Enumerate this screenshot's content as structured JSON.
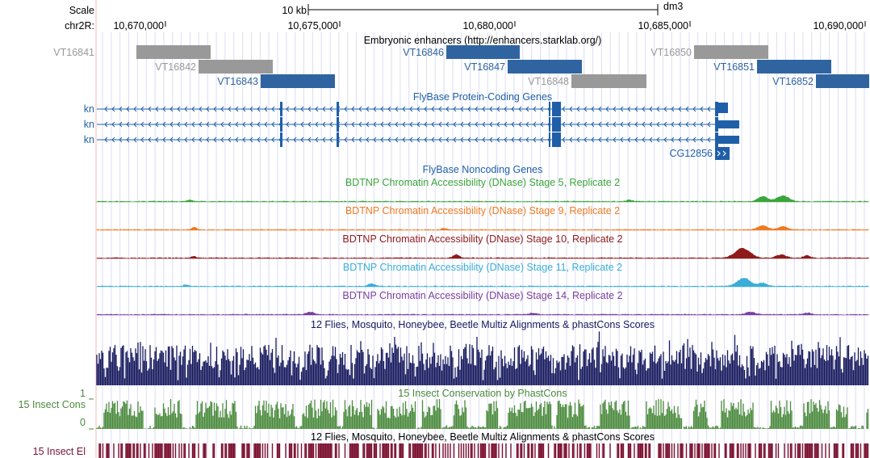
{
  "scale": {
    "label": "Scale",
    "bar_label": "10 kb",
    "assembly": "dm3",
    "chrom_label": "chr2R:",
    "ticks": [
      "10,670,000",
      "10,675,000",
      "10,680,000",
      "10,685,000",
      "10,690,000"
    ]
  },
  "tracks": {
    "enhancers": {
      "title": "Embryonic enhancers (http://enhancers.starklab.org/)",
      "items": [
        {
          "name": "VT16841",
          "color": "#999999"
        },
        {
          "name": "VT16842",
          "color": "#999999"
        },
        {
          "name": "VT16843",
          "color": "#2f64a0"
        },
        {
          "name": "VT16846",
          "color": "#2f64a0"
        },
        {
          "name": "VT16847",
          "color": "#2f64a0"
        },
        {
          "name": "VT16848",
          "color": "#999999"
        },
        {
          "name": "VT16850",
          "color": "#999999"
        },
        {
          "name": "VT16851",
          "color": "#2f64a0"
        },
        {
          "name": "VT16852",
          "color": "#2f64a0"
        }
      ]
    },
    "genes": {
      "title": "FlyBase Protein-Coding Genes",
      "color": "#1f5fa8",
      "transcripts": [
        {
          "label": "kn"
        },
        {
          "label": "kn"
        },
        {
          "label": "kn"
        }
      ],
      "extra_gene": {
        "label": "CG12856"
      }
    },
    "noncoding": {
      "title": "FlyBase Noncoding Genes"
    },
    "dnase": [
      {
        "title": "BDTNP Chromatin Accessibility (DNase) Stage 5, Replicate 2",
        "color": "#3aa53a"
      },
      {
        "title": "BDTNP Chromatin Accessibility (DNase) Stage 9, Replicate 2",
        "color": "#ef7a22"
      },
      {
        "title": "BDTNP Chromatin Accessibility (DNase) Stage 10, Replicate 2",
        "color": "#8e1a1a"
      },
      {
        "title": "BDTNP Chromatin Accessibility (DNase) Stage 11, Replicate 2",
        "color": "#3aaed8"
      },
      {
        "title": "BDTNP Chromatin Accessibility (DNase) Stage 14, Replicate 2",
        "color": "#7a3fa0"
      }
    ],
    "multiz": {
      "title": "12 Flies, Mosquito, Honeybee, Beetle Multiz Alignments & phastCons Scores",
      "color": "#16195e"
    },
    "phastcons": {
      "title": "15 Insect Conservation by PhastCons",
      "side_label": "15 Insect Cons",
      "axis_max": "1",
      "axis_min": "0",
      "color": "#4a8a3c"
    },
    "elements": {
      "title": "12 Flies, Mosquito, Honeybee, Beetle Multiz Alignments & phastCons Scores",
      "side_label": "15 Insect El",
      "color": "#7a1030"
    }
  }
}
